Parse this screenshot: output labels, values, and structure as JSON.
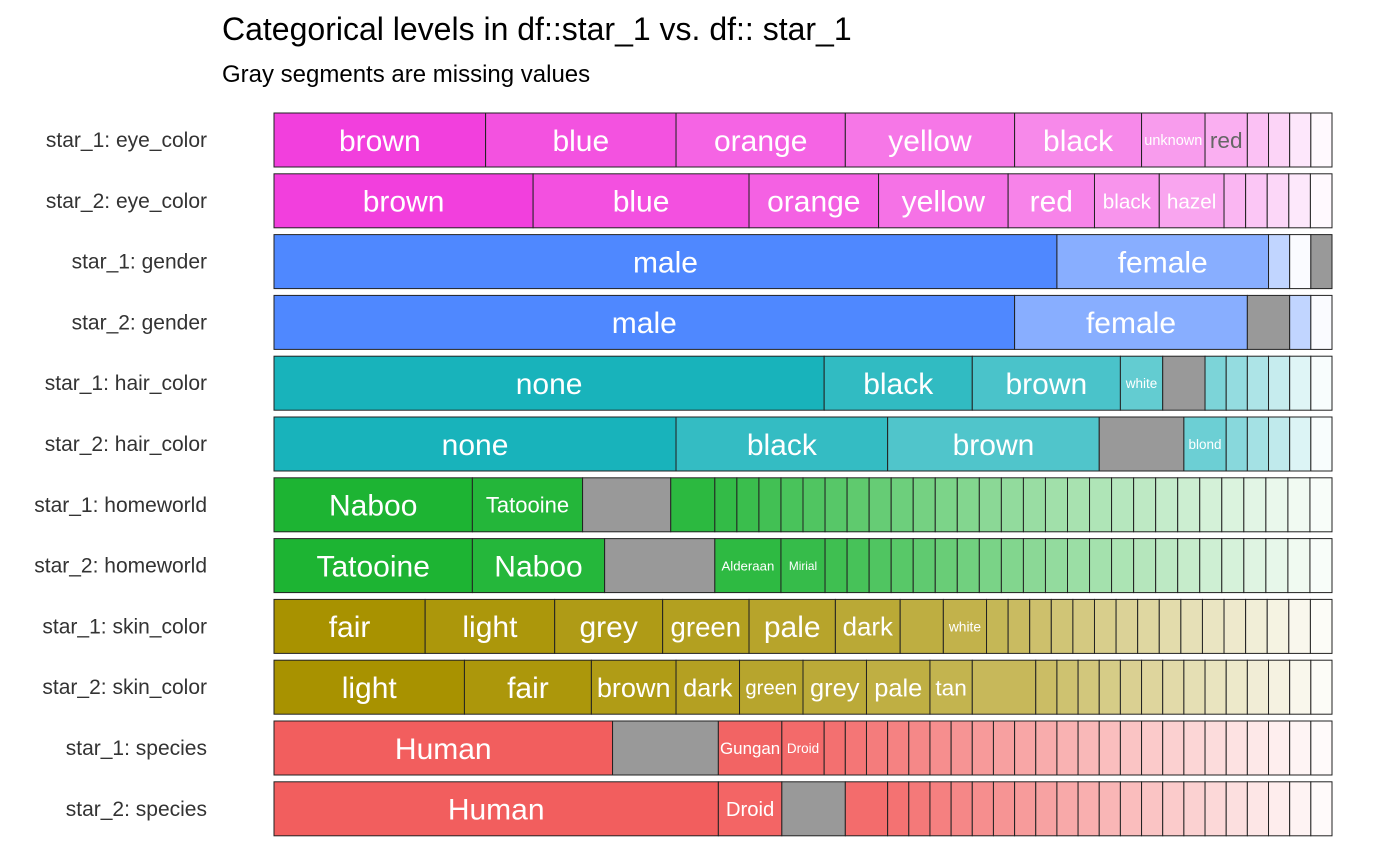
{
  "chart_data": {
    "type": "bar",
    "title": "Categorical levels in df::star_1 vs. df:: star_1",
    "subtitle": "Gray segments are missing values",
    "missing_color": "#999999",
    "rows": [
      {
        "label": "star_1: eye_color",
        "color": "#F23FDD",
        "segments": [
          {
            "label": "brown",
            "value": 20
          },
          {
            "label": "blue",
            "value": 18
          },
          {
            "label": "orange",
            "value": 16
          },
          {
            "label": "yellow",
            "value": 16
          },
          {
            "label": "black",
            "value": 12
          },
          {
            "label": "unknown",
            "value": 6
          },
          {
            "label": "red",
            "value": 4
          },
          {
            "label": "",
            "value": 2
          },
          {
            "label": "",
            "value": 2
          },
          {
            "label": "",
            "value": 2
          },
          {
            "label": "",
            "value": 2
          }
        ]
      },
      {
        "label": "star_2: eye_color",
        "color": "#F23FDD",
        "segments": [
          {
            "label": "brown",
            "value": 24
          },
          {
            "label": "blue",
            "value": 20
          },
          {
            "label": "orange",
            "value": 12
          },
          {
            "label": "yellow",
            "value": 12
          },
          {
            "label": "red",
            "value": 8
          },
          {
            "label": "black",
            "value": 6
          },
          {
            "label": "hazel",
            "value": 6
          },
          {
            "label": "",
            "value": 2
          },
          {
            "label": "",
            "value": 2
          },
          {
            "label": "",
            "value": 2
          },
          {
            "label": "",
            "value": 2
          },
          {
            "label": "",
            "value": 2
          }
        ]
      },
      {
        "label": "star_1: gender",
        "color": "#4F88FF",
        "segments": [
          {
            "label": "male",
            "value": 74
          },
          {
            "label": "female",
            "value": 20
          },
          {
            "label": "",
            "value": 2
          },
          {
            "label": "",
            "value": 2
          },
          {
            "label": "NA",
            "value": 2,
            "missing": true
          }
        ]
      },
      {
        "label": "star_2: gender",
        "color": "#4F88FF",
        "segments": [
          {
            "label": "male",
            "value": 70
          },
          {
            "label": "female",
            "value": 22
          },
          {
            "label": "NA",
            "value": 4,
            "missing": true
          },
          {
            "label": "",
            "value": 2
          },
          {
            "label": "",
            "value": 2
          }
        ]
      },
      {
        "label": "star_1: hair_color",
        "color": "#18B3BB",
        "segments": [
          {
            "label": "none",
            "value": 52
          },
          {
            "label": "black",
            "value": 14
          },
          {
            "label": "brown",
            "value": 14
          },
          {
            "label": "white",
            "value": 4
          },
          {
            "label": "NA",
            "value": 4,
            "missing": true
          },
          {
            "label": "",
            "value": 2
          },
          {
            "label": "",
            "value": 2
          },
          {
            "label": "",
            "value": 2
          },
          {
            "label": "",
            "value": 2
          },
          {
            "label": "",
            "value": 2
          },
          {
            "label": "",
            "value": 2
          }
        ]
      },
      {
        "label": "star_2: hair_color",
        "color": "#18B3BB",
        "segments": [
          {
            "label": "none",
            "value": 38
          },
          {
            "label": "black",
            "value": 20
          },
          {
            "label": "brown",
            "value": 20
          },
          {
            "label": "NA",
            "value": 8,
            "missing": true
          },
          {
            "label": "blond",
            "value": 4
          },
          {
            "label": "",
            "value": 2
          },
          {
            "label": "",
            "value": 2
          },
          {
            "label": "",
            "value": 2
          },
          {
            "label": "",
            "value": 2
          },
          {
            "label": "",
            "value": 2
          }
        ]
      },
      {
        "label": "star_1: homeworld",
        "color": "#1DB433",
        "segments": [
          {
            "label": "Naboo",
            "value": 18
          },
          {
            "label": "Tatooine",
            "value": 10
          },
          {
            "label": "NA",
            "value": 8,
            "missing": true
          },
          {
            "label": "",
            "value": 4
          },
          {
            "label": "",
            "value": 2
          },
          {
            "label": "",
            "value": 2
          },
          {
            "label": "",
            "value": 2
          },
          {
            "label": "",
            "value": 2
          },
          {
            "label": "",
            "value": 2
          },
          {
            "label": "",
            "value": 2
          },
          {
            "label": "",
            "value": 2
          },
          {
            "label": "",
            "value": 2
          },
          {
            "label": "",
            "value": 2
          },
          {
            "label": "",
            "value": 2
          },
          {
            "label": "",
            "value": 2
          },
          {
            "label": "",
            "value": 2
          },
          {
            "label": "",
            "value": 2
          },
          {
            "label": "",
            "value": 2
          },
          {
            "label": "",
            "value": 2
          },
          {
            "label": "",
            "value": 2
          },
          {
            "label": "",
            "value": 2
          },
          {
            "label": "",
            "value": 2
          },
          {
            "label": "",
            "value": 2
          },
          {
            "label": "",
            "value": 2
          },
          {
            "label": "",
            "value": 2
          },
          {
            "label": "",
            "value": 2
          },
          {
            "label": "",
            "value": 2
          },
          {
            "label": "",
            "value": 2
          },
          {
            "label": "",
            "value": 2
          },
          {
            "label": "",
            "value": 2
          },
          {
            "label": "",
            "value": 2
          },
          {
            "label": "",
            "value": 2
          }
        ]
      },
      {
        "label": "star_2: homeworld",
        "color": "#1DB433",
        "segments": [
          {
            "label": "Tatooine",
            "value": 18
          },
          {
            "label": "Naboo",
            "value": 12
          },
          {
            "label": "NA",
            "value": 10,
            "missing": true
          },
          {
            "label": "Alderaan",
            "value": 6
          },
          {
            "label": "Mirial",
            "value": 4
          },
          {
            "label": "",
            "value": 2
          },
          {
            "label": "",
            "value": 2
          },
          {
            "label": "",
            "value": 2
          },
          {
            "label": "",
            "value": 2
          },
          {
            "label": "",
            "value": 2
          },
          {
            "label": "",
            "value": 2
          },
          {
            "label": "",
            "value": 2
          },
          {
            "label": "",
            "value": 2
          },
          {
            "label": "",
            "value": 2
          },
          {
            "label": "",
            "value": 2
          },
          {
            "label": "",
            "value": 2
          },
          {
            "label": "",
            "value": 2
          },
          {
            "label": "",
            "value": 2
          },
          {
            "label": "",
            "value": 2
          },
          {
            "label": "",
            "value": 2
          },
          {
            "label": "",
            "value": 2
          },
          {
            "label": "",
            "value": 2
          },
          {
            "label": "",
            "value": 2
          },
          {
            "label": "",
            "value": 2
          },
          {
            "label": "",
            "value": 2
          },
          {
            "label": "",
            "value": 2
          },
          {
            "label": "",
            "value": 2
          },
          {
            "label": "",
            "value": 2
          }
        ]
      },
      {
        "label": "star_1: skin_color",
        "color": "#A89200",
        "segments": [
          {
            "label": "fair",
            "value": 14
          },
          {
            "label": "light",
            "value": 12
          },
          {
            "label": "grey",
            "value": 10
          },
          {
            "label": "green",
            "value": 8
          },
          {
            "label": "pale",
            "value": 8
          },
          {
            "label": "dark",
            "value": 6
          },
          {
            "label": "",
            "value": 4
          },
          {
            "label": "white",
            "value": 4
          },
          {
            "label": "",
            "value": 2
          },
          {
            "label": "",
            "value": 2
          },
          {
            "label": "",
            "value": 2
          },
          {
            "label": "",
            "value": 2
          },
          {
            "label": "",
            "value": 2
          },
          {
            "label": "",
            "value": 2
          },
          {
            "label": "",
            "value": 2
          },
          {
            "label": "",
            "value": 2
          },
          {
            "label": "",
            "value": 2
          },
          {
            "label": "",
            "value": 2
          },
          {
            "label": "",
            "value": 2
          },
          {
            "label": "",
            "value": 2
          },
          {
            "label": "",
            "value": 2
          },
          {
            "label": "",
            "value": 2
          },
          {
            "label": "",
            "value": 2
          },
          {
            "label": "",
            "value": 2
          }
        ]
      },
      {
        "label": "star_2: skin_color",
        "color": "#A89200",
        "segments": [
          {
            "label": "light",
            "value": 18
          },
          {
            "label": "fair",
            "value": 12
          },
          {
            "label": "brown",
            "value": 8
          },
          {
            "label": "dark",
            "value": 6
          },
          {
            "label": "green",
            "value": 6
          },
          {
            "label": "grey",
            "value": 6
          },
          {
            "label": "pale",
            "value": 6
          },
          {
            "label": "tan",
            "value": 4
          },
          {
            "label": "",
            "value": 6
          },
          {
            "label": "",
            "value": 2
          },
          {
            "label": "",
            "value": 2
          },
          {
            "label": "",
            "value": 2
          },
          {
            "label": "",
            "value": 2
          },
          {
            "label": "",
            "value": 2
          },
          {
            "label": "",
            "value": 2
          },
          {
            "label": "",
            "value": 2
          },
          {
            "label": "",
            "value": 2
          },
          {
            "label": "",
            "value": 2
          },
          {
            "label": "",
            "value": 2
          },
          {
            "label": "",
            "value": 2
          },
          {
            "label": "",
            "value": 2
          },
          {
            "label": "",
            "value": 2
          },
          {
            "label": "",
            "value": 2
          }
        ]
      },
      {
        "label": "star_1: species",
        "color": "#F25E5E",
        "segments": [
          {
            "label": "Human",
            "value": 32
          },
          {
            "label": "NA",
            "value": 10,
            "missing": true
          },
          {
            "label": "Gungan",
            "value": 6
          },
          {
            "label": "Droid",
            "value": 4
          },
          {
            "label": "",
            "value": 2
          },
          {
            "label": "",
            "value": 2
          },
          {
            "label": "",
            "value": 2
          },
          {
            "label": "",
            "value": 2
          },
          {
            "label": "",
            "value": 2
          },
          {
            "label": "",
            "value": 2
          },
          {
            "label": "",
            "value": 2
          },
          {
            "label": "",
            "value": 2
          },
          {
            "label": "",
            "value": 2
          },
          {
            "label": "",
            "value": 2
          },
          {
            "label": "",
            "value": 2
          },
          {
            "label": "",
            "value": 2
          },
          {
            "label": "",
            "value": 2
          },
          {
            "label": "",
            "value": 2
          },
          {
            "label": "",
            "value": 2
          },
          {
            "label": "",
            "value": 2
          },
          {
            "label": "",
            "value": 2
          },
          {
            "label": "",
            "value": 2
          },
          {
            "label": "",
            "value": 2
          },
          {
            "label": "",
            "value": 2
          },
          {
            "label": "",
            "value": 2
          },
          {
            "label": "",
            "value": 2
          },
          {
            "label": "",
            "value": 2
          },
          {
            "label": "",
            "value": 2
          }
        ]
      },
      {
        "label": "star_2: species",
        "color": "#F25E5E",
        "segments": [
          {
            "label": "Human",
            "value": 42
          },
          {
            "label": "Droid",
            "value": 6
          },
          {
            "label": "NA",
            "value": 6,
            "missing": true
          },
          {
            "label": "",
            "value": 4
          },
          {
            "label": "",
            "value": 2
          },
          {
            "label": "",
            "value": 2
          },
          {
            "label": "",
            "value": 2
          },
          {
            "label": "",
            "value": 2
          },
          {
            "label": "",
            "value": 2
          },
          {
            "label": "",
            "value": 2
          },
          {
            "label": "",
            "value": 2
          },
          {
            "label": "",
            "value": 2
          },
          {
            "label": "",
            "value": 2
          },
          {
            "label": "",
            "value": 2
          },
          {
            "label": "",
            "value": 2
          },
          {
            "label": "",
            "value": 2
          },
          {
            "label": "",
            "value": 2
          },
          {
            "label": "",
            "value": 2
          },
          {
            "label": "",
            "value": 2
          },
          {
            "label": "",
            "value": 2
          },
          {
            "label": "",
            "value": 2
          },
          {
            "label": "",
            "value": 2
          },
          {
            "label": "",
            "value": 2
          },
          {
            "label": "",
            "value": 2
          },
          {
            "label": "",
            "value": 2
          }
        ]
      }
    ]
  }
}
